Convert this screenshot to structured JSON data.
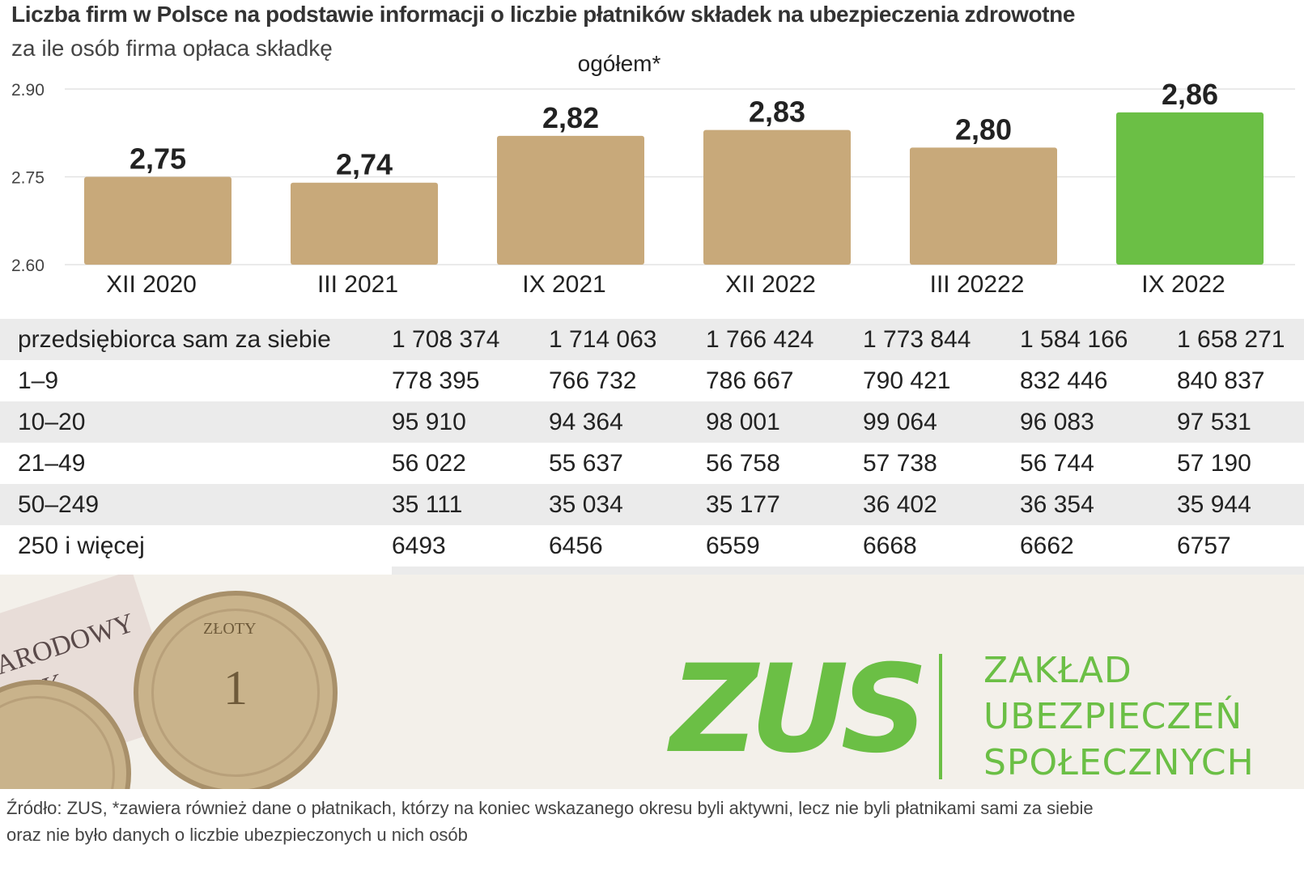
{
  "title": "Liczba firm w Polsce na podstawie informacji o liczbie płatników składek na ubezpieczenia zdrowotne",
  "subtitle": "za ile osób firma opłaca składkę",
  "chart_data": {
    "type": "bar",
    "title": "ogółem*",
    "categories": [
      "XII 2020",
      "III 2021",
      "IX 2021",
      "XII 2022",
      "III 20222",
      "IX 2022"
    ],
    "values": [
      2.75,
      2.74,
      2.82,
      2.83,
      2.8,
      2.86
    ],
    "value_labels": [
      "2,75",
      "2,74",
      "2,82",
      "2,83",
      "2,80",
      "2,86"
    ],
    "y_ticks": [
      "2.90",
      "2.75",
      "2.60"
    ],
    "y_tick_values": [
      2.9,
      2.75,
      2.6
    ],
    "ylim": [
      2.6,
      2.9
    ],
    "grid": true,
    "colors": [
      "#c8a97a",
      "#c8a97a",
      "#c8a97a",
      "#c8a97a",
      "#c8a97a",
      "#6bbf45"
    ]
  },
  "table": {
    "rows": [
      {
        "label": "przedsiębiorca sam za siebie",
        "values": [
          "1 708 374",
          "1 714 063",
          "1 766 424",
          "1 773 844",
          "1 584 166",
          "1 658 271"
        ]
      },
      {
        "label": "1–9",
        "values": [
          "778 395",
          "766 732",
          "786 667",
          "790 421",
          "832 446",
          "840 837"
        ]
      },
      {
        "label": "10–20",
        "values": [
          "95 910",
          "94 364",
          "98 001",
          "99 064",
          "96 083",
          "97 531"
        ]
      },
      {
        "label": "21–49",
        "values": [
          "56 022",
          "55 637",
          "56 758",
          "57 738",
          "56 744",
          "57 190"
        ]
      },
      {
        "label": "50–249",
        "values": [
          "35 111",
          "35 034",
          "35 177",
          "36 402",
          "36 354",
          "35 944"
        ]
      },
      {
        "label": "250 i więcej",
        "values": [
          "6493",
          "6456",
          "6559",
          "6668",
          "6662",
          "6757"
        ]
      }
    ],
    "periods": [
      "XII 2020",
      "III 2021",
      "IX 2021",
      "XII 2022",
      "III 2022",
      "IX 2022"
    ]
  },
  "logo": {
    "mark": "ZUS",
    "name_lines": [
      "ZAKŁAD",
      "UBEZPIECZEŃ",
      "SPOŁECZNYCH"
    ],
    "color": "#6bbf45"
  },
  "photo": {
    "banknote_text": "NARODOWY BANK POLSKI",
    "coin_text": "ZŁOTY",
    "coin_value": "1"
  },
  "footnote": {
    "line1": "Źródło: ZUS, *zawiera również dane o płatnikach, którzy na koniec wskazanego okresu byli aktywni, lecz nie byli płatnikami sami za siebie",
    "line2": "oraz nie było danych o liczbie ubezpieczonych u nich osób"
  }
}
